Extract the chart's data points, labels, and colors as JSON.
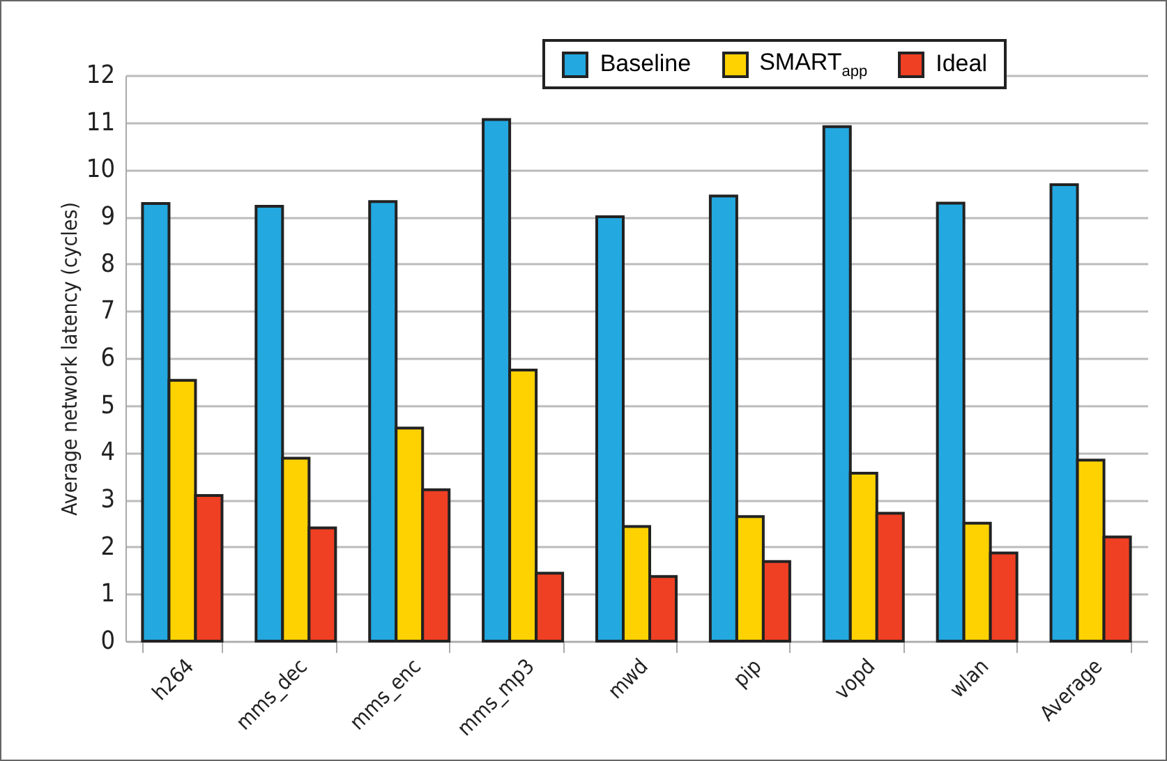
{
  "chart_data": {
    "type": "bar",
    "ylabel": "Average network latency (cycles)",
    "categories": [
      "h264",
      "mms_dec",
      "mms_enc",
      "mms_mp3",
      "mwd",
      "pip",
      "vopd",
      "wlan",
      "Average"
    ],
    "series": [
      {
        "name": "Baseline",
        "color": "#23a8e0",
        "values": [
          9.28,
          9.22,
          9.32,
          11.06,
          9.0,
          9.44,
          10.91,
          9.29,
          9.68
        ]
      },
      {
        "name": "SMART$_{app}$",
        "color": "#fed201",
        "values": [
          5.53,
          3.88,
          4.52,
          5.75,
          2.43,
          2.64,
          3.56,
          2.5,
          3.84
        ]
      },
      {
        "name": "Ideal",
        "color": "#ef4023",
        "values": [
          3.09,
          2.4,
          3.21,
          1.44,
          1.37,
          1.69,
          2.71,
          1.87,
          2.21
        ]
      }
    ],
    "ylim": [
      0,
      12
    ],
    "yticks": [
      0,
      1,
      2,
      3,
      4,
      5,
      6,
      7,
      8,
      9,
      10,
      11,
      12
    ],
    "grid": "y",
    "legend": "top right"
  }
}
